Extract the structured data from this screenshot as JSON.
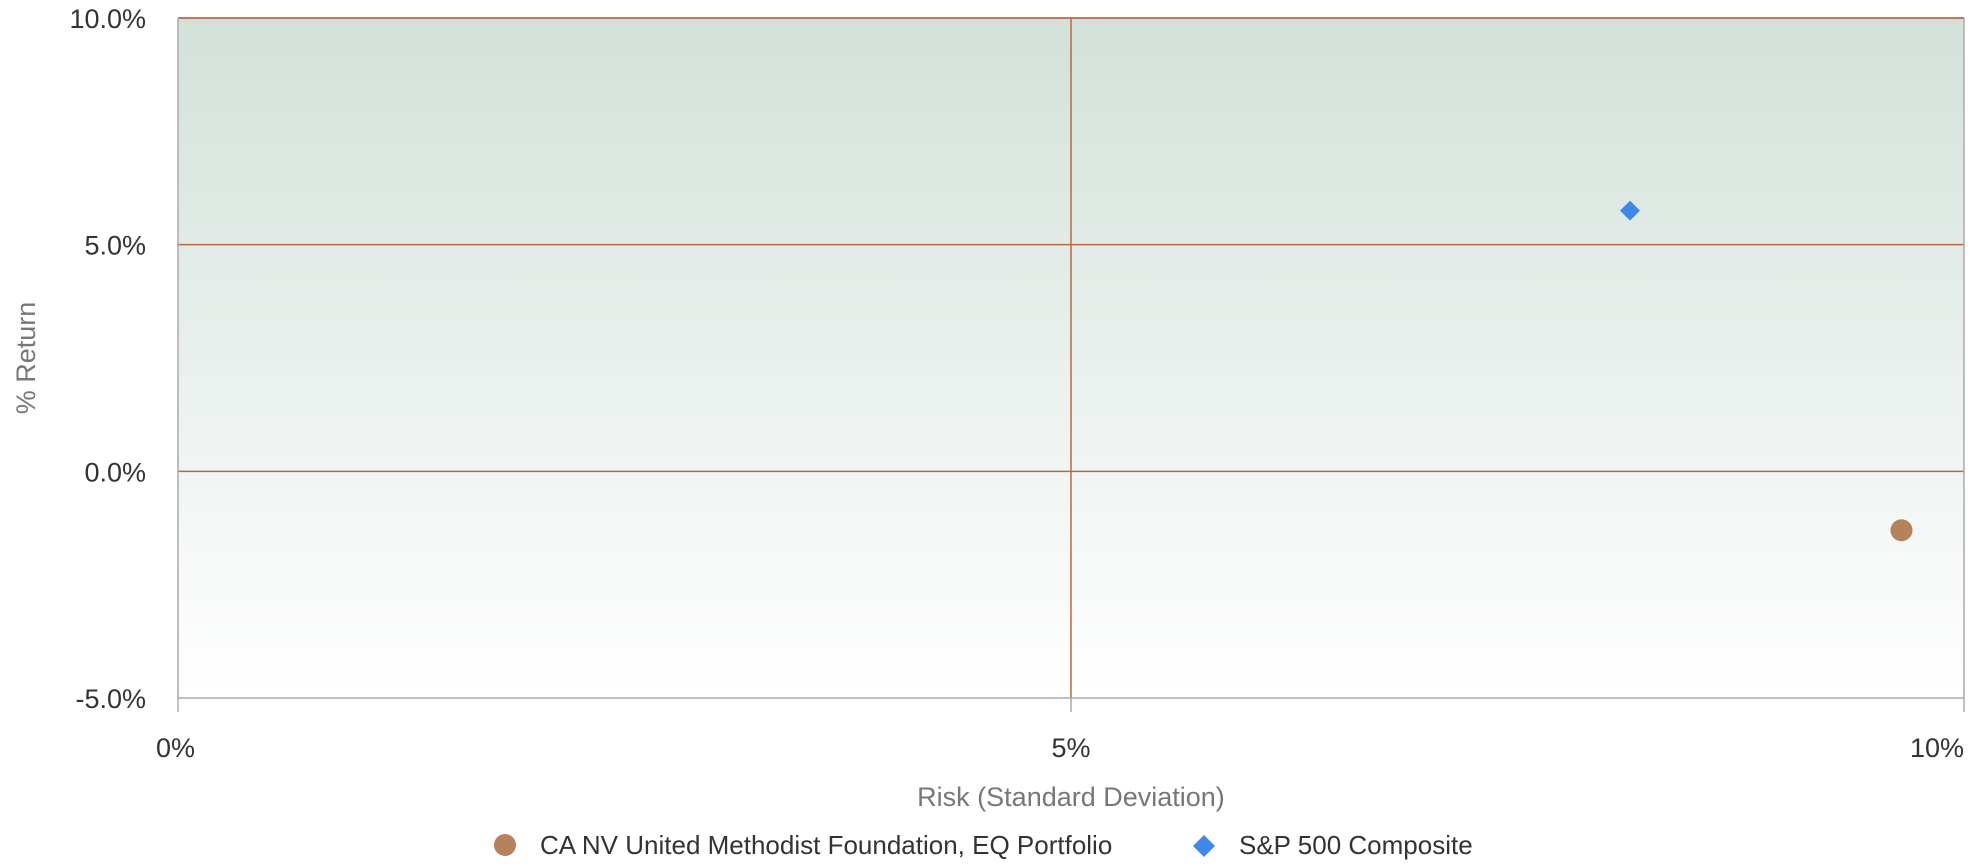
{
  "chart_data": {
    "type": "scatter",
    "title": "",
    "xlabel": "Risk (Standard Deviation)",
    "ylabel": "% Return",
    "xlim": [
      0,
      10
    ],
    "ylim": [
      -5,
      10
    ],
    "x_ticks": [
      {
        "value": 0,
        "label": "0%"
      },
      {
        "value": 5,
        "label": "5%"
      },
      {
        "value": 10,
        "label": "10%"
      }
    ],
    "y_ticks": [
      {
        "value": 10,
        "label": "10.0%"
      },
      {
        "value": 5,
        "label": "5.0%"
      },
      {
        "value": 0,
        "label": "0.0%"
      },
      {
        "value": -5,
        "label": "-5.0%"
      }
    ],
    "grid": true,
    "legend_position": "bottom",
    "series": [
      {
        "name": "CA NV United Methodist Foundation, EQ Portfolio",
        "marker": "circle",
        "color": "#b5825e",
        "points": [
          {
            "x": 9.65,
            "y": -1.3
          }
        ]
      },
      {
        "name": "S&P 500 Composite",
        "marker": "diamond",
        "color": "#3f88e8",
        "points": [
          {
            "x": 8.13,
            "y": 5.75
          }
        ]
      }
    ],
    "colors": {
      "grid": "#b86a44",
      "axis": "#aaaaaa",
      "background_top": "#d3e1da",
      "background_bottom": "#ffffff"
    }
  }
}
